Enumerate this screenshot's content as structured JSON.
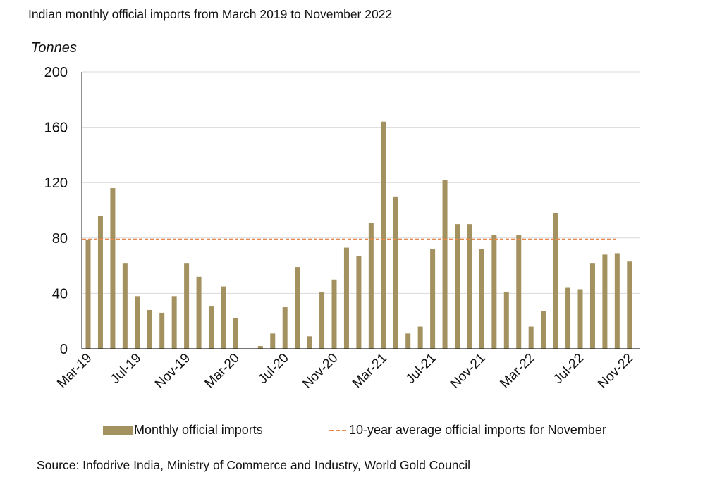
{
  "chart_data": {
    "type": "bar",
    "title": "Indian monthly official imports from March 2019 to November 2022",
    "ylabel": "Tonnes",
    "xlabel": "",
    "ylim": [
      0,
      200
    ],
    "yticks": [
      0,
      40,
      80,
      120,
      160,
      200
    ],
    "ytick_labels": [
      "0",
      "40",
      "80",
      "120",
      "160",
      "200"
    ],
    "grid": "horizontal",
    "categories": [
      "Mar-19",
      "Apr-19",
      "May-19",
      "Jun-19",
      "Jul-19",
      "Aug-19",
      "Sep-19",
      "Oct-19",
      "Nov-19",
      "Dec-19",
      "Jan-20",
      "Feb-20",
      "Mar-20",
      "Apr-20",
      "May-20",
      "Jun-20",
      "Jul-20",
      "Aug-20",
      "Sep-20",
      "Oct-20",
      "Nov-20",
      "Dec-20",
      "Jan-21",
      "Feb-21",
      "Mar-21",
      "Apr-21",
      "May-21",
      "Jun-21",
      "Jul-21",
      "Aug-21",
      "Sep-21",
      "Oct-21",
      "Nov-21",
      "Dec-21",
      "Jan-22",
      "Feb-22",
      "Mar-22",
      "Apr-22",
      "May-22",
      "Jun-22",
      "Jul-22",
      "Aug-22",
      "Sep-22",
      "Oct-22",
      "Nov-22"
    ],
    "xtick_labels": [
      "Mar-19",
      "Jul-19",
      "Nov-19",
      "Mar-20",
      "Jul-20",
      "Nov-20",
      "Mar-21",
      "Jul-21",
      "Nov-21",
      "Mar-22",
      "Jul-22",
      "Nov-22"
    ],
    "xtick_every": 4,
    "series": [
      {
        "name": "Monthly official imports",
        "type": "bar",
        "color": "#A39160",
        "values": [
          79,
          96,
          116,
          62,
          38,
          28,
          26,
          38,
          62,
          52,
          31,
          45,
          22,
          0,
          2,
          11,
          30,
          59,
          9,
          41,
          50,
          73,
          67,
          91,
          164,
          110,
          11,
          16,
          72,
          122,
          90,
          90,
          72,
          82,
          41,
          82,
          16,
          27,
          98,
          44,
          43,
          62,
          68,
          69,
          63
        ]
      },
      {
        "name": "10-year average official imports for November",
        "type": "line",
        "style": "dashed",
        "color": "#E8884A",
        "value": 79,
        "x_range": [
          "Mar-19",
          "Oct-22"
        ]
      }
    ],
    "legend": {
      "placement": "bottom",
      "entries": [
        "Monthly official imports",
        "10-year average official imports for November"
      ]
    },
    "source": "Source: Infodrive India, Ministry of Commerce and Industry, World Gold Council"
  }
}
